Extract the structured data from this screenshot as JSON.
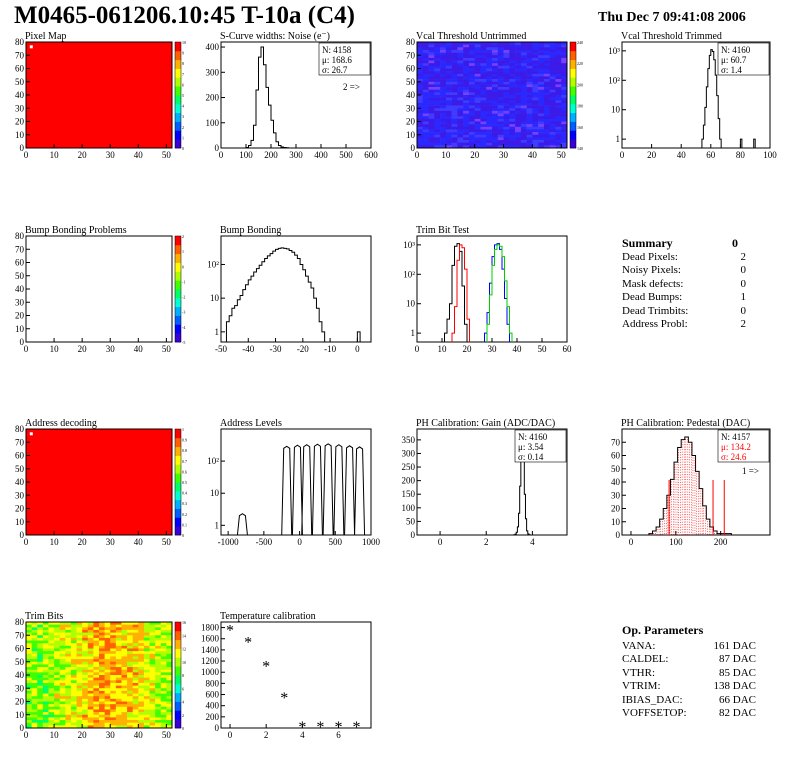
{
  "header": {
    "title": "M0465-061206.10:45 T-10a (C4)",
    "date": "Thu Dec  7 09:41:08 2006"
  },
  "palette": {
    "frame": "#000000",
    "hot": "#ff0000",
    "blue_line": "#0000ff",
    "green_line": "#00cc00"
  },
  "chart_data": [
    {
      "id": "pixel-map",
      "type": "heatmap",
      "title": "Pixel Map",
      "xlim": [
        0,
        52
      ],
      "ylim": [
        0,
        80
      ],
      "xticks": [
        "0",
        "10",
        "20",
        "30",
        "40",
        "50"
      ],
      "yticks": [
        "0",
        "10",
        "20",
        "30",
        "40",
        "50",
        "60",
        "70",
        "80"
      ],
      "colorbar": [
        "0",
        "1",
        "2",
        "3",
        "4",
        "5",
        "6",
        "7",
        "8",
        "9",
        "10"
      ],
      "fill": "uniform-max",
      "dead_pixels": [
        [
          1,
          75
        ]
      ]
    },
    {
      "id": "s-curve",
      "type": "bar",
      "title": "S-Curve widths: Noise (e⁻)",
      "xlim": [
        0,
        600
      ],
      "ylim": [
        0,
        420
      ],
      "xticks": [
        "0",
        "100",
        "200",
        "300",
        "400",
        "500",
        "600"
      ],
      "yticks": [
        "0",
        "100",
        "200",
        "300",
        "400"
      ],
      "stats": [
        "N: 4158",
        "μ: 168.6",
        "σ: 26.7"
      ],
      "note": "2 =>",
      "series": [
        {
          "x0": 100,
          "dx": 10,
          "values": [
            2,
            10,
            30,
            90,
            230,
            360,
            400,
            330,
            240,
            170,
            110,
            60,
            25,
            10,
            4,
            2,
            1
          ]
        }
      ]
    },
    {
      "id": "vcal-untrimmed",
      "type": "heatmap",
      "title": "Vcal Threshold Untrimmed",
      "xlim": [
        0,
        52
      ],
      "ylim": [
        0,
        80
      ],
      "xticks": [
        "0",
        "10",
        "20",
        "30",
        "40",
        "50"
      ],
      "yticks": [
        "0",
        "10",
        "20",
        "30",
        "40",
        "50",
        "60",
        "70",
        "80"
      ],
      "colorbar": [
        "140",
        "160",
        "180",
        "200",
        "220",
        "240"
      ],
      "fill": "noise-blue"
    },
    {
      "id": "vcal-trimmed",
      "type": "bar",
      "title": "Vcal Threshold Trimmed",
      "log": true,
      "xlim": [
        0,
        100
      ],
      "ylim": [
        0.5,
        2000
      ],
      "xticks": [
        "0",
        "20",
        "40",
        "60",
        "80",
        "100"
      ],
      "yticks": [
        "1",
        "10",
        "10²",
        "10³"
      ],
      "stats": [
        "N: 4160",
        "μ: 60.7",
        "σ:  1.4"
      ],
      "series": [
        {
          "x0": 54,
          "dx": 1,
          "values": [
            1,
            3,
            12,
            60,
            250,
            700,
            1100,
            950,
            500,
            150,
            30,
            5,
            1
          ]
        }
      ],
      "outliers": [
        [
          80,
          1
        ],
        [
          89,
          1
        ]
      ]
    },
    {
      "id": "bump-problems",
      "type": "heatmap",
      "title": "Bump Bonding Problems",
      "xlim": [
        0,
        52
      ],
      "ylim": [
        0,
        80
      ],
      "xticks": [
        "0",
        "10",
        "20",
        "30",
        "40",
        "50"
      ],
      "yticks": [
        "0",
        "10",
        "20",
        "30",
        "40",
        "50",
        "60",
        "70",
        "80"
      ],
      "colorbar": [
        "-5",
        "-4",
        "-3",
        "-2",
        "-1",
        "0",
        "1",
        "2"
      ],
      "fill": "empty"
    },
    {
      "id": "bump-bonding",
      "type": "bar",
      "title": "Bump Bonding",
      "log": true,
      "xlim": [
        -50,
        5
      ],
      "ylim": [
        0.5,
        700
      ],
      "xticks": [
        "-50",
        "-40",
        "-30",
        "-20",
        "-10",
        "0"
      ],
      "yticks": [
        "1",
        "10",
        "10²"
      ],
      "series": [
        {
          "x0": -48,
          "dx": 1,
          "values": [
            2,
            3,
            5,
            6,
            9,
            12,
            18,
            25,
            35,
            45,
            60,
            75,
            95,
            120,
            150,
            180,
            210,
            250,
            280,
            300,
            310,
            300,
            290,
            260,
            230,
            190,
            150,
            100,
            70,
            45,
            30,
            20,
            10,
            5,
            2,
            1
          ]
        }
      ],
      "outliers": [
        [
          0,
          1
        ]
      ]
    },
    {
      "id": "trim-bit-test",
      "type": "line",
      "title": "Trim Bit Test",
      "log": true,
      "xlim": [
        0,
        60
      ],
      "ylim": [
        0.5,
        2000
      ],
      "xticks": [
        "0",
        "10",
        "20",
        "30",
        "40",
        "50",
        "60"
      ],
      "yticks": [
        "1",
        "10",
        "10²",
        "10³"
      ],
      "series": [
        {
          "color": "#000000",
          "x0": 11,
          "dx": 1,
          "values": [
            1,
            3,
            10,
            200,
            900,
            1100,
            600,
            40,
            2
          ]
        },
        {
          "color": "#ff0000",
          "x0": 14,
          "dx": 1,
          "values": [
            1,
            8,
            300,
            1000,
            800,
            150,
            3
          ]
        },
        {
          "color": "#0000ff",
          "x0": 27,
          "dx": 1,
          "values": [
            1,
            5,
            50,
            400,
            1000,
            1100,
            700,
            150,
            15,
            2
          ]
        },
        {
          "color": "#00cc00",
          "x0": 28,
          "dx": 1,
          "values": [
            2,
            20,
            200,
            700,
            1000,
            900,
            400,
            60,
            8,
            1
          ]
        }
      ]
    },
    {
      "id": "address-decoding",
      "type": "heatmap",
      "title": "Address decoding",
      "xlim": [
        0,
        52
      ],
      "ylim": [
        0,
        80
      ],
      "xticks": [
        "0",
        "10",
        "20",
        "30",
        "40",
        "50"
      ],
      "yticks": [
        "0",
        "10",
        "20",
        "30",
        "40",
        "50",
        "60",
        "70",
        "80"
      ],
      "colorbar": [
        "0",
        "0.1",
        "0.2",
        "0.3",
        "0.4",
        "0.5",
        "0.6",
        "0.7",
        "0.8",
        "0.9",
        "1"
      ],
      "fill": "uniform-max",
      "dead_pixels": [
        [
          1,
          75
        ]
      ]
    },
    {
      "id": "address-levels",
      "type": "line",
      "title": "Address Levels",
      "log": true,
      "xlim": [
        -1100,
        1000
      ],
      "ylim": [
        0.5,
        1000
      ],
      "xticks": [
        "-1000",
        "-500",
        "0",
        "500",
        "1000"
      ],
      "yticks": [
        "1",
        "10",
        "10²"
      ],
      "peaks": [
        [
          -800,
          2
        ],
        [
          -180,
          250
        ],
        [
          -30,
          270
        ],
        [
          100,
          280
        ],
        [
          250,
          290
        ],
        [
          400,
          300
        ],
        [
          550,
          280
        ],
        [
          700,
          260
        ],
        [
          840,
          240
        ]
      ]
    },
    {
      "id": "ph-gain",
      "type": "bar",
      "title": "PH Calibration: Gain (ADC/DAC)",
      "xlim": [
        -1,
        5.5
      ],
      "ylim": [
        0,
        390
      ],
      "xticks": [
        "0",
        "2",
        "4"
      ],
      "yticks": [
        "0",
        "50",
        "100",
        "150",
        "200",
        "250",
        "300",
        "350"
      ],
      "stats": [
        "N: 4160",
        "μ: 3.54",
        "σ: 0.14"
      ],
      "series": [
        {
          "x0": 3.2,
          "dx": 0.05,
          "values": [
            1,
            3,
            10,
            30,
            80,
            180,
            320,
            370,
            300,
            150,
            60,
            15,
            4,
            1
          ]
        }
      ]
    },
    {
      "id": "ph-pedestal",
      "type": "bar",
      "title": "PH Calibration: Pedestal (DAC)",
      "xlim": [
        -20,
        310
      ],
      "ylim": [
        0,
        80
      ],
      "xticks": [
        "0",
        "100",
        "200"
      ],
      "yticks": [
        "0",
        "10",
        "20",
        "30",
        "40",
        "50",
        "60",
        "70"
      ],
      "stats": [
        "N: 4157",
        "μ: 134.2",
        "σ: 24.6"
      ],
      "note": "1 =>",
      "series": [
        {
          "x0": 40,
          "dx": 8,
          "values": [
            1,
            3,
            6,
            12,
            20,
            30,
            42,
            55,
            66,
            72,
            74,
            70,
            60,
            48,
            35,
            22,
            12,
            6,
            3,
            1,
            1,
            1,
            1
          ]
        }
      ],
      "marks": [
        85,
        183,
        208
      ]
    },
    {
      "id": "trim-bits",
      "type": "heatmap",
      "title": "Trim Bits",
      "xlim": [
        0,
        52
      ],
      "ylim": [
        0,
        80
      ],
      "xticks": [
        "0",
        "10",
        "20",
        "30",
        "40",
        "50"
      ],
      "yticks": [
        "0",
        "10",
        "20",
        "30",
        "40",
        "50",
        "60",
        "70",
        "80"
      ],
      "colorbar": [
        "0",
        "2",
        "4",
        "6",
        "8",
        "10",
        "12",
        "14",
        "16"
      ],
      "fill": "noise-green"
    },
    {
      "id": "temp-calibration",
      "type": "scatter",
      "title": "Temperature calibration",
      "xlim": [
        -0.5,
        7.8
      ],
      "ylim": [
        0,
        1900
      ],
      "xticks": [
        "0",
        "2",
        "4",
        "6"
      ],
      "yticks": [
        "0",
        "200",
        "400",
        "600",
        "800",
        "1000",
        "1200",
        "1400",
        "1600",
        "1800"
      ],
      "x": [
        0,
        1,
        2,
        3,
        4,
        5,
        6,
        7
      ],
      "y": [
        1750,
        1530,
        1100,
        540,
        20,
        20,
        20,
        20
      ]
    }
  ],
  "summary": {
    "title": "Summary",
    "value": "0",
    "rows": [
      {
        "label": "Dead Pixels:",
        "value": "2"
      },
      {
        "label": "Noisy Pixels:",
        "value": "0"
      },
      {
        "label": "Mask defects:",
        "value": "0"
      },
      {
        "label": "Dead Bumps:",
        "value": "1"
      },
      {
        "label": "Dead Trimbits:",
        "value": "0"
      },
      {
        "label": "Address Probl:",
        "value": "2"
      }
    ]
  },
  "op_parameters": {
    "title": "Op. Parameters",
    "rows": [
      {
        "label": "VANA:",
        "value": "161 DAC"
      },
      {
        "label": "CALDEL:",
        "value": "87 DAC"
      },
      {
        "label": "VTHR:",
        "value": "85 DAC"
      },
      {
        "label": "VTRIM:",
        "value": "138 DAC"
      },
      {
        "label": "IBIAS_DAC:",
        "value": "66 DAC"
      },
      {
        "label": "VOFFSETOP:",
        "value": "82 DAC"
      }
    ]
  }
}
